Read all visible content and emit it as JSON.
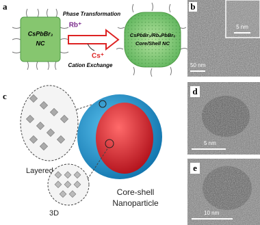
{
  "panels": {
    "a": {
      "label": "a",
      "left_line1": "CsPbBr₃",
      "left_line2": "NC",
      "arrow_top": "Phase Transformation",
      "ion_in": "Rb⁺",
      "ion_out": "Cs⁺",
      "arrow_bottom": "Cation Exchange",
      "right_line1": "CsPbBr₃/Rb₄PbBr₆",
      "right_line2": "Core/Shell NC"
    },
    "b": {
      "label": "b",
      "inset_scale": "5 nm",
      "scale": "50 nm"
    },
    "c": {
      "label": "c",
      "layered": "Layered",
      "three_d": "3D",
      "core_line1": "Core-shell",
      "core_line2": "Nanoparticle"
    },
    "d": {
      "label": "d",
      "scale": "5 nm"
    },
    "e": {
      "label": "e",
      "scale": "10 nm"
    }
  }
}
